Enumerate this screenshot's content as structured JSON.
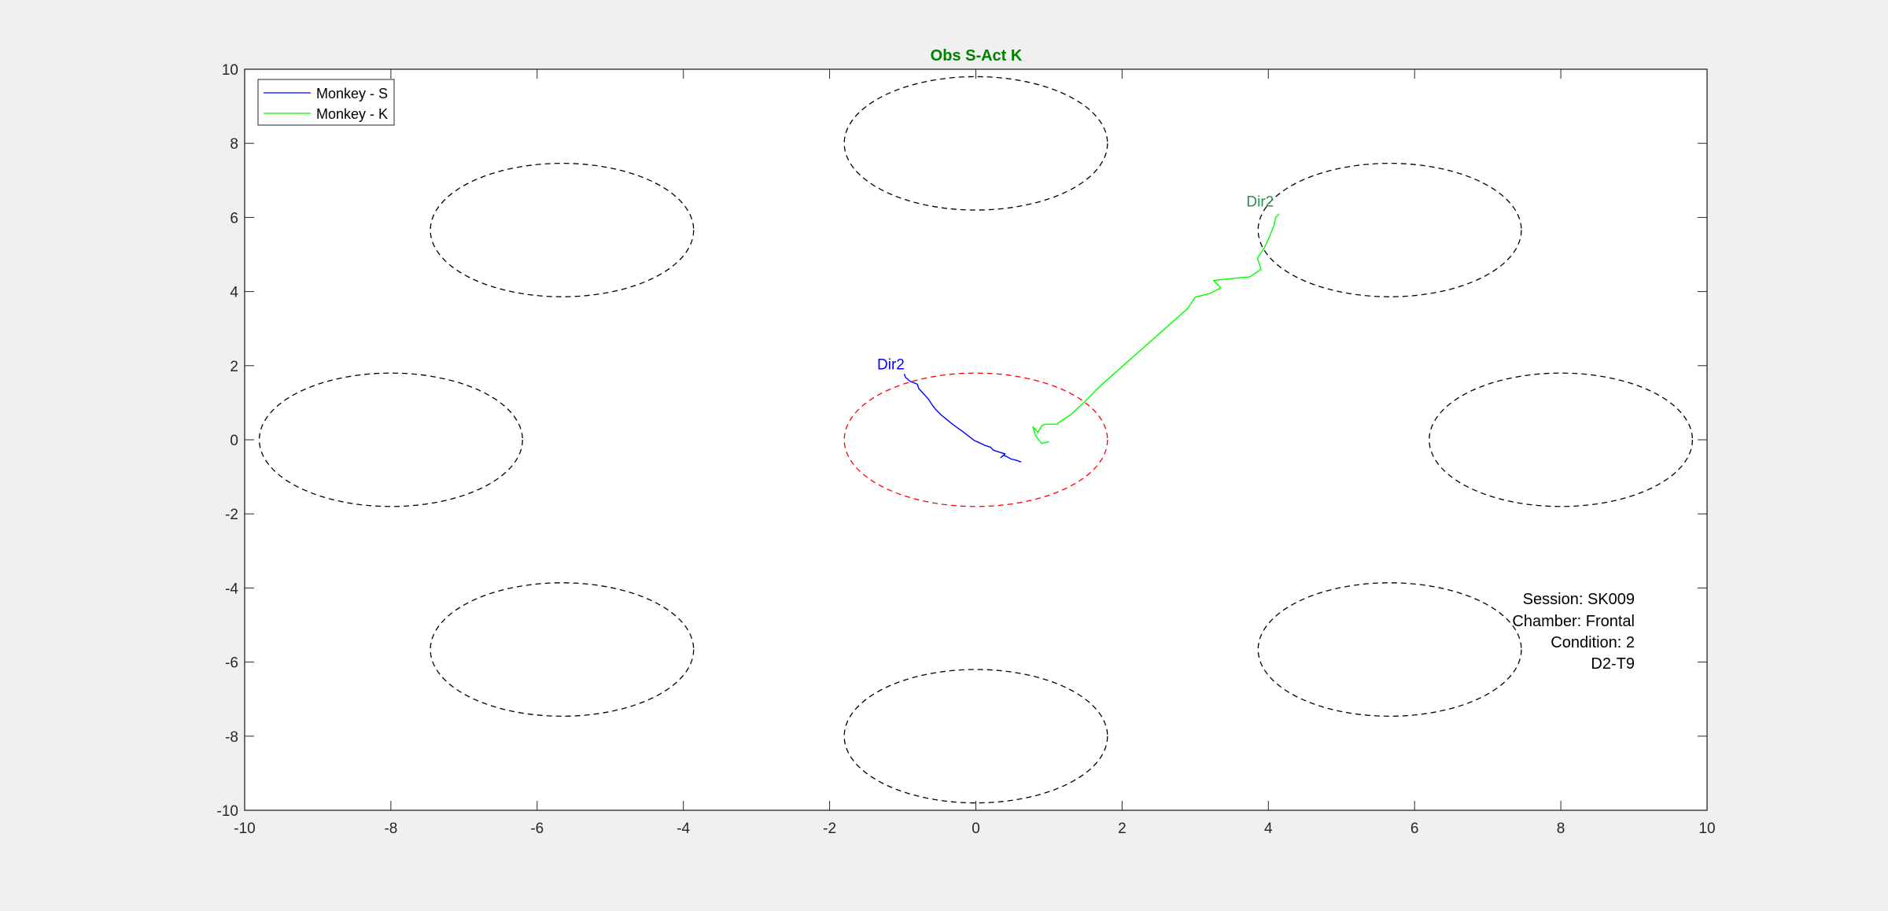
{
  "chart_data": {
    "type": "line",
    "title": "Obs S-Act K",
    "title_color": "#008000",
    "xlabel": "",
    "ylabel": "",
    "xlim": [
      -10,
      10
    ],
    "ylim": [
      -10,
      10
    ],
    "xticks": [
      "-10",
      "-8",
      "-6",
      "-4",
      "-2",
      "0",
      "2",
      "4",
      "6",
      "8",
      "10"
    ],
    "yticks": [
      "10",
      "8",
      "6",
      "4",
      "2",
      "0",
      "-2",
      "-4",
      "-6",
      "-8",
      "-10"
    ],
    "grid": false,
    "legend_position": "top-left",
    "targets": [
      {
        "cx": 0,
        "cy": 8,
        "rx": 1.8,
        "ry": 1.8,
        "color": "#000000"
      },
      {
        "cx": 5.66,
        "cy": 5.66,
        "rx": 1.8,
        "ry": 1.8,
        "color": "#000000"
      },
      {
        "cx": 8,
        "cy": 0,
        "rx": 1.8,
        "ry": 1.8,
        "color": "#000000"
      },
      {
        "cx": 5.66,
        "cy": -5.66,
        "rx": 1.8,
        "ry": 1.8,
        "color": "#000000"
      },
      {
        "cx": 0,
        "cy": -8,
        "rx": 1.8,
        "ry": 1.8,
        "color": "#000000"
      },
      {
        "cx": -5.66,
        "cy": -5.66,
        "rx": 1.8,
        "ry": 1.8,
        "color": "#000000"
      },
      {
        "cx": -8,
        "cy": 0,
        "rx": 1.8,
        "ry": 1.8,
        "color": "#000000"
      },
      {
        "cx": -5.66,
        "cy": 5.66,
        "rx": 1.8,
        "ry": 1.8,
        "color": "#000000"
      },
      {
        "cx": 0,
        "cy": 0,
        "rx": 1.8,
        "ry": 1.8,
        "color": "#ff0000"
      }
    ],
    "series": [
      {
        "name": "Monkey - S",
        "color": "#0000ff",
        "x": [
          0.62,
          0.55,
          0.48,
          0.42,
          0.38,
          0.34,
          0.4,
          0.3,
          0.24,
          0.2,
          0.12,
          0.05,
          -0.02,
          -0.1,
          -0.18,
          -0.25,
          -0.32,
          -0.4,
          -0.48,
          -0.55,
          -0.6,
          -0.65,
          -0.72,
          -0.78,
          -0.8,
          -0.9,
          -0.96,
          -0.98
        ],
        "y": [
          -0.6,
          -0.55,
          -0.52,
          -0.45,
          -0.42,
          -0.48,
          -0.38,
          -0.32,
          -0.28,
          -0.2,
          -0.15,
          -0.08,
          -0.02,
          0.1,
          0.22,
          0.32,
          0.42,
          0.55,
          0.68,
          0.82,
          0.95,
          1.1,
          1.25,
          1.38,
          1.5,
          1.58,
          1.68,
          1.78
        ]
      },
      {
        "name": "Monkey - K",
        "color": "#00ff00",
        "x": [
          1.0,
          0.9,
          0.82,
          0.78,
          0.85,
          0.9,
          0.95,
          1.1,
          1.3,
          1.5,
          1.7,
          1.9,
          2.1,
          2.3,
          2.5,
          2.7,
          2.9,
          3.0,
          3.2,
          3.35,
          3.25,
          3.5,
          3.75,
          3.9,
          3.85,
          3.95,
          4.02,
          4.08,
          4.1,
          4.15
        ],
        "y": [
          -0.05,
          -0.1,
          0.1,
          0.35,
          0.2,
          0.38,
          0.42,
          0.42,
          0.68,
          1.05,
          1.45,
          1.8,
          2.15,
          2.5,
          2.85,
          3.2,
          3.55,
          3.85,
          3.95,
          4.1,
          4.3,
          4.35,
          4.4,
          4.6,
          4.9,
          5.2,
          5.5,
          5.8,
          6.0,
          6.1
        ]
      }
    ],
    "annotations": [
      {
        "text": "Dir2",
        "x": -1.35,
        "y": 1.9,
        "color": "#0000ff"
      },
      {
        "text": "Dir2",
        "x": 3.7,
        "y": 6.3,
        "color": "#2e8b57"
      }
    ],
    "info_box": [
      "Session: SK009",
      "Chamber: Frontal",
      "Condition: 2",
      "D2-T9"
    ]
  }
}
